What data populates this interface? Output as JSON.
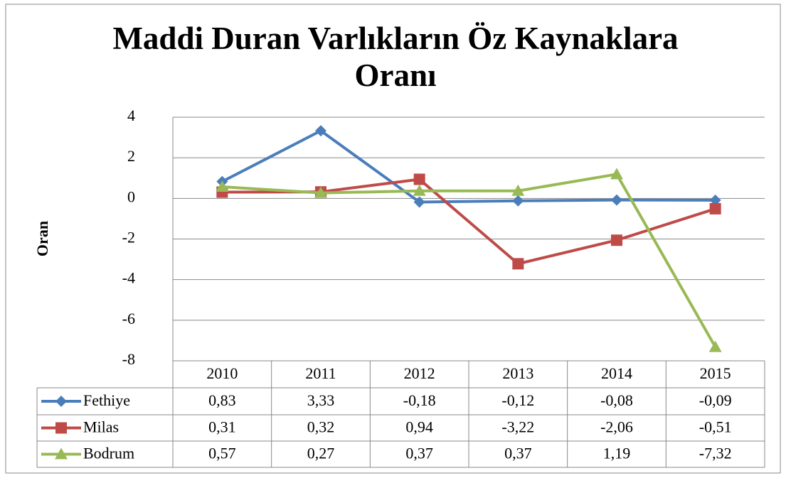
{
  "chart_data": {
    "type": "line",
    "title": "Maddi Duran Varlıkların Öz Kaynaklara Oranı",
    "y_label": "Oran",
    "categories": [
      "2010",
      "2011",
      "2012",
      "2013",
      "2014",
      "2015"
    ],
    "series": [
      {
        "name": "Fethiye",
        "color": "#4a7ebb",
        "marker": "diamond",
        "values": [
          0.83,
          3.33,
          -0.18,
          -0.12,
          -0.08,
          -0.09
        ],
        "value_labels": [
          "0,83",
          "3,33",
          "-0,18",
          "-0,12",
          "-0,08",
          "-0,09"
        ]
      },
      {
        "name": "Milas",
        "color": "#be4b48",
        "marker": "square",
        "values": [
          0.31,
          0.32,
          0.94,
          -3.22,
          -2.06,
          -0.51
        ],
        "value_labels": [
          "0,31",
          "0,32",
          "0,94",
          "-3,22",
          "-2,06",
          "-0,51"
        ]
      },
      {
        "name": "Bodrum",
        "color": "#98b954",
        "marker": "triangle",
        "values": [
          0.57,
          0.27,
          0.37,
          0.37,
          1.19,
          -7.32
        ],
        "value_labels": [
          "0,57",
          "0,27",
          "0,37",
          "0,37",
          "1,19",
          "-7,32"
        ]
      }
    ],
    "ylim": [
      -8,
      4
    ],
    "yticks": [
      4,
      2,
      0,
      -2,
      -4,
      -6,
      -8
    ],
    "grid": true
  }
}
